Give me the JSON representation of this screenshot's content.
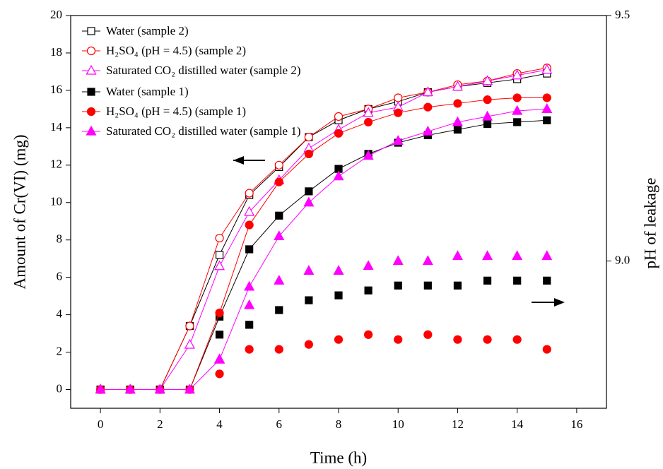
{
  "chart_data": {
    "type": "line",
    "xlabel": "Time (h)",
    "ylabel": "Amount of Cr(VI) (mg)",
    "y2label": "pH of leakage",
    "xlim": [
      -1,
      17
    ],
    "xticks": [
      0,
      2,
      4,
      6,
      8,
      10,
      12,
      14,
      16
    ],
    "ylim": [
      -1,
      20
    ],
    "yticks": [
      0,
      2,
      4,
      6,
      8,
      10,
      12,
      14,
      16,
      18,
      20
    ],
    "y2lim": [
      8.7,
      9.5
    ],
    "y2ticks": [
      {
        "value": 9.0,
        "label": "9.0"
      },
      {
        "value": 9.5,
        "label": "9.5"
      }
    ],
    "x": [
      0,
      1,
      2,
      3,
      4,
      5,
      6,
      7,
      8,
      9,
      10,
      11,
      12,
      13,
      14,
      15
    ],
    "series": [
      {
        "name": "Water (sample 2)",
        "color": "#000000",
        "marker": "square",
        "filled": false,
        "values": [
          0,
          0,
          0,
          3.4,
          7.2,
          10.4,
          11.9,
          13.5,
          14.4,
          15.0,
          15.4,
          15.9,
          16.2,
          16.4,
          16.6,
          16.9
        ]
      },
      {
        "name": "H₂SO₄ (pH = 4.5) (sample 2)",
        "color": "#ff0000",
        "marker": "circle",
        "filled": false,
        "values": [
          0,
          0,
          0,
          3.4,
          8.1,
          10.5,
          12.0,
          13.5,
          14.6,
          15.0,
          15.6,
          15.9,
          16.3,
          16.5,
          16.9,
          17.2
        ]
      },
      {
        "name": "Saturated CO₂ distilled water (sample 2)",
        "color": "#ff00ff",
        "marker": "triangle",
        "filled": false,
        "values": [
          0,
          0,
          0,
          2.4,
          6.6,
          9.5,
          11.2,
          12.9,
          13.9,
          14.8,
          15.1,
          15.9,
          16.2,
          16.5,
          16.8,
          17.1
        ]
      },
      {
        "name": "Water (sample 1)",
        "color": "#000000",
        "marker": "square",
        "filled": true,
        "values": [
          0,
          0,
          0,
          0,
          3.9,
          7.5,
          9.3,
          10.6,
          11.8,
          12.6,
          13.2,
          13.6,
          13.9,
          14.2,
          14.3,
          14.4
        ]
      },
      {
        "name": "H₂SO₄ (pH = 4.5) (sample 1)",
        "color": "#ff0000",
        "marker": "circle",
        "filled": true,
        "values": [
          0,
          0,
          0,
          0,
          4.1,
          8.8,
          11.1,
          12.6,
          13.7,
          14.3,
          14.8,
          15.1,
          15.3,
          15.5,
          15.6,
          15.6
        ]
      },
      {
        "name": "Saturated CO₂ distilled water (sample 1)",
        "color": "#ff00ff",
        "marker": "triangle",
        "filled": true,
        "values": [
          0,
          0,
          0,
          0,
          1.6,
          5.5,
          8.2,
          10.0,
          11.4,
          12.5,
          13.3,
          13.8,
          14.3,
          14.6,
          14.9,
          15.0
        ]
      },
      {
        "color": "#000000",
        "marker": "square",
        "filled": true,
        "axis": "y2",
        "x": [
          4,
          5,
          6,
          7,
          8,
          9,
          10,
          11,
          12,
          13,
          14,
          15
        ],
        "values": [
          8.85,
          8.87,
          8.9,
          8.92,
          8.93,
          8.94,
          8.95,
          8.95,
          8.95,
          8.96,
          8.96,
          8.96
        ]
      },
      {
        "color": "#ff0000",
        "marker": "circle",
        "filled": true,
        "axis": "y2",
        "x": [
          4,
          5,
          6,
          7,
          8,
          9,
          10,
          11,
          12,
          13,
          14,
          15
        ],
        "values": [
          8.77,
          8.82,
          8.82,
          8.83,
          8.84,
          8.85,
          8.84,
          8.85,
          8.84,
          8.84,
          8.84,
          8.82
        ]
      },
      {
        "color": "#ff00ff",
        "marker": "triangle",
        "filled": true,
        "axis": "y2",
        "x": [
          4,
          5,
          6,
          7,
          8,
          9,
          10,
          11,
          12,
          13,
          14,
          15
        ],
        "values": [
          8.8,
          8.91,
          8.96,
          8.98,
          8.98,
          8.99,
          9.0,
          9.0,
          9.01,
          9.01,
          9.01,
          9.01
        ]
      }
    ]
  }
}
